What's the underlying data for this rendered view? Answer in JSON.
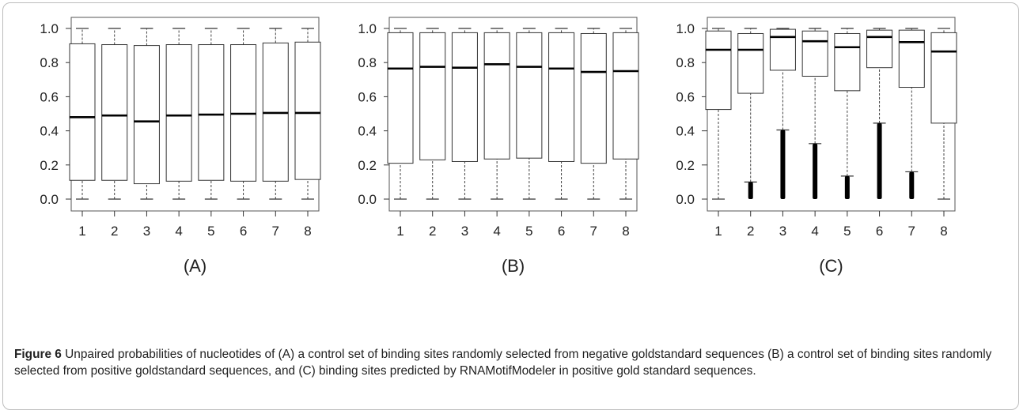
{
  "figure": {
    "caption_label": "Figure 6",
    "caption_text": " Unpaired probabilities of nucleotides of (A) a control set of binding sites randomly selected from negative goldstandard sequences (B) a control set of binding sites randomly selected from positive goldstandard sequences, and (C) binding sites predicted by RNAMotifModeler in positive gold standard sequences."
  },
  "chart_data": [
    {
      "type": "box",
      "panel_label": "(A)",
      "categories": [
        "1",
        "2",
        "3",
        "4",
        "5",
        "6",
        "7",
        "8"
      ],
      "ylim": [
        0,
        1
      ],
      "yticks": [
        "0.0",
        "0.2",
        "0.4",
        "0.6",
        "0.8",
        "1.0"
      ],
      "boxes": [
        {
          "min": 0.0,
          "q1": 0.11,
          "median": 0.48,
          "q3": 0.91,
          "max": 1.0
        },
        {
          "min": 0.0,
          "q1": 0.11,
          "median": 0.49,
          "q3": 0.905,
          "max": 1.0
        },
        {
          "min": 0.0,
          "q1": 0.09,
          "median": 0.455,
          "q3": 0.9,
          "max": 1.0
        },
        {
          "min": 0.0,
          "q1": 0.105,
          "median": 0.49,
          "q3": 0.905,
          "max": 1.0
        },
        {
          "min": 0.0,
          "q1": 0.11,
          "median": 0.495,
          "q3": 0.905,
          "max": 1.0
        },
        {
          "min": 0.0,
          "q1": 0.105,
          "median": 0.5,
          "q3": 0.905,
          "max": 1.0
        },
        {
          "min": 0.0,
          "q1": 0.105,
          "median": 0.505,
          "q3": 0.915,
          "max": 1.0
        },
        {
          "min": 0.0,
          "q1": 0.115,
          "median": 0.505,
          "q3": 0.92,
          "max": 1.0
        }
      ]
    },
    {
      "type": "box",
      "panel_label": "(B)",
      "categories": [
        "1",
        "2",
        "3",
        "4",
        "5",
        "6",
        "7",
        "8"
      ],
      "ylim": [
        0,
        1
      ],
      "yticks": [
        "0.0",
        "0.2",
        "0.4",
        "0.6",
        "0.8",
        "1.0"
      ],
      "boxes": [
        {
          "min": 0.0,
          "q1": 0.21,
          "median": 0.765,
          "q3": 0.975,
          "max": 1.0
        },
        {
          "min": 0.0,
          "q1": 0.23,
          "median": 0.775,
          "q3": 0.975,
          "max": 1.0
        },
        {
          "min": 0.0,
          "q1": 0.22,
          "median": 0.77,
          "q3": 0.975,
          "max": 1.0
        },
        {
          "min": 0.0,
          "q1": 0.235,
          "median": 0.79,
          "q3": 0.975,
          "max": 1.0
        },
        {
          "min": 0.0,
          "q1": 0.24,
          "median": 0.775,
          "q3": 0.975,
          "max": 1.0
        },
        {
          "min": 0.0,
          "q1": 0.22,
          "median": 0.765,
          "q3": 0.975,
          "max": 1.0
        },
        {
          "min": 0.0,
          "q1": 0.21,
          "median": 0.745,
          "q3": 0.97,
          "max": 1.0
        },
        {
          "min": 0.0,
          "q1": 0.235,
          "median": 0.75,
          "q3": 0.975,
          "max": 1.0
        }
      ]
    },
    {
      "type": "box",
      "panel_label": "(C)",
      "categories": [
        "1",
        "2",
        "3",
        "4",
        "5",
        "6",
        "7",
        "8"
      ],
      "ylim": [
        0,
        1
      ],
      "yticks": [
        "0.0",
        "0.2",
        "0.4",
        "0.6",
        "0.8",
        "1.0"
      ],
      "boxes": [
        {
          "min": 0.0,
          "q1": 0.525,
          "median": 0.875,
          "q3": 0.985,
          "max": 1.0,
          "outliers_range": null
        },
        {
          "min": 0.1,
          "q1": 0.62,
          "median": 0.875,
          "q3": 0.97,
          "max": 1.0,
          "outliers_range": [
            0.0,
            0.1
          ]
        },
        {
          "min": 0.405,
          "q1": 0.755,
          "median": 0.95,
          "q3": 0.995,
          "max": 1.0,
          "outliers_range": [
            0.0,
            0.405
          ]
        },
        {
          "min": 0.325,
          "q1": 0.72,
          "median": 0.925,
          "q3": 0.985,
          "max": 1.0,
          "outliers_range": [
            0.0,
            0.325
          ]
        },
        {
          "min": 0.135,
          "q1": 0.635,
          "median": 0.89,
          "q3": 0.97,
          "max": 1.0,
          "outliers_range": [
            0.0,
            0.135
          ]
        },
        {
          "min": 0.445,
          "q1": 0.77,
          "median": 0.95,
          "q3": 0.99,
          "max": 1.0,
          "outliers_range": [
            0.0,
            0.445
          ]
        },
        {
          "min": 0.16,
          "q1": 0.655,
          "median": 0.92,
          "q3": 0.99,
          "max": 1.0,
          "outliers_range": [
            0.0,
            0.16
          ]
        },
        {
          "min": 0.0,
          "q1": 0.445,
          "median": 0.865,
          "q3": 0.975,
          "max": 1.0,
          "outliers_range": null
        }
      ]
    }
  ]
}
